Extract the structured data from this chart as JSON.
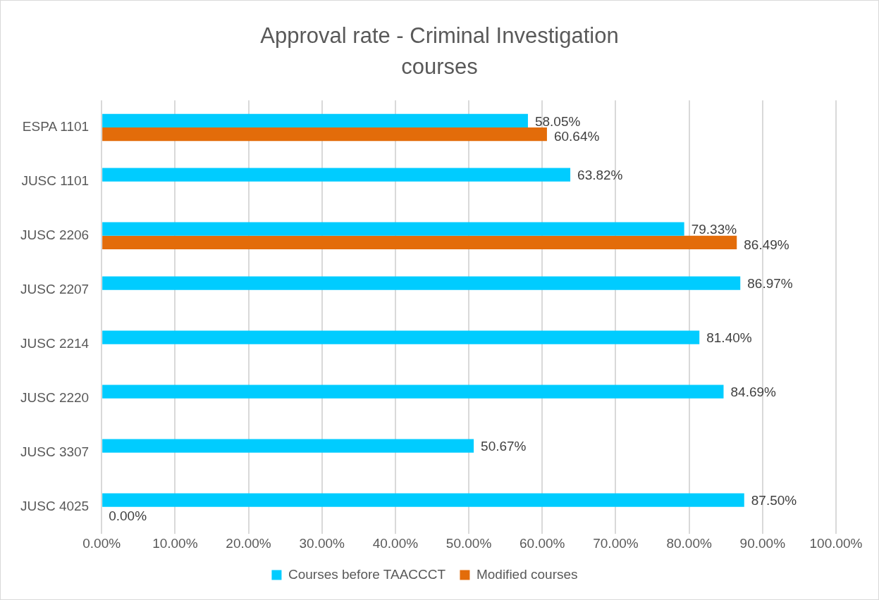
{
  "chart_data": {
    "type": "bar",
    "orientation": "horizontal",
    "title": "Approval rate - Criminal Investigation courses",
    "categories": [
      "ESPA 1101",
      "JUSC 1101",
      "JUSC 2206",
      "JUSC 2207",
      "JUSC 2214",
      "JUSC 2220",
      "JUSC 3307",
      "JUSC 4025"
    ],
    "series": [
      {
        "name": "Courses before TAACCCT",
        "color": "#00ccff",
        "values": [
          58.05,
          63.82,
          79.33,
          86.97,
          81.4,
          84.69,
          50.67,
          87.5
        ],
        "value_labels": [
          "58.05%",
          "63.82%",
          "79.33%",
          "86.97%",
          "81.40%",
          "84.69%",
          "50.67%",
          "87.50%"
        ]
      },
      {
        "name": "Modified courses",
        "color": "#e36c0a",
        "values": [
          60.64,
          null,
          86.49,
          null,
          null,
          null,
          null,
          0
        ],
        "value_labels": [
          "60.64%",
          null,
          "86.49%",
          null,
          null,
          null,
          null,
          "0.00%"
        ]
      }
    ],
    "xlim": [
      0,
      100
    ],
    "xticks": [
      {
        "value": 0,
        "label": "0.00%"
      },
      {
        "value": 10,
        "label": "10.00%"
      },
      {
        "value": 20,
        "label": "20.00%"
      },
      {
        "value": 30,
        "label": "30.00%"
      },
      {
        "value": 40,
        "label": "40.00%"
      },
      {
        "value": 50,
        "label": "50.00%"
      },
      {
        "value": 60,
        "label": "60.00%"
      },
      {
        "value": 70,
        "label": "70.00%"
      },
      {
        "value": 80,
        "label": "80.00%"
      },
      {
        "value": 90,
        "label": "90.00%"
      },
      {
        "value": 100,
        "label": "100.00%"
      }
    ],
    "grid": "x",
    "legend": "bottom"
  }
}
